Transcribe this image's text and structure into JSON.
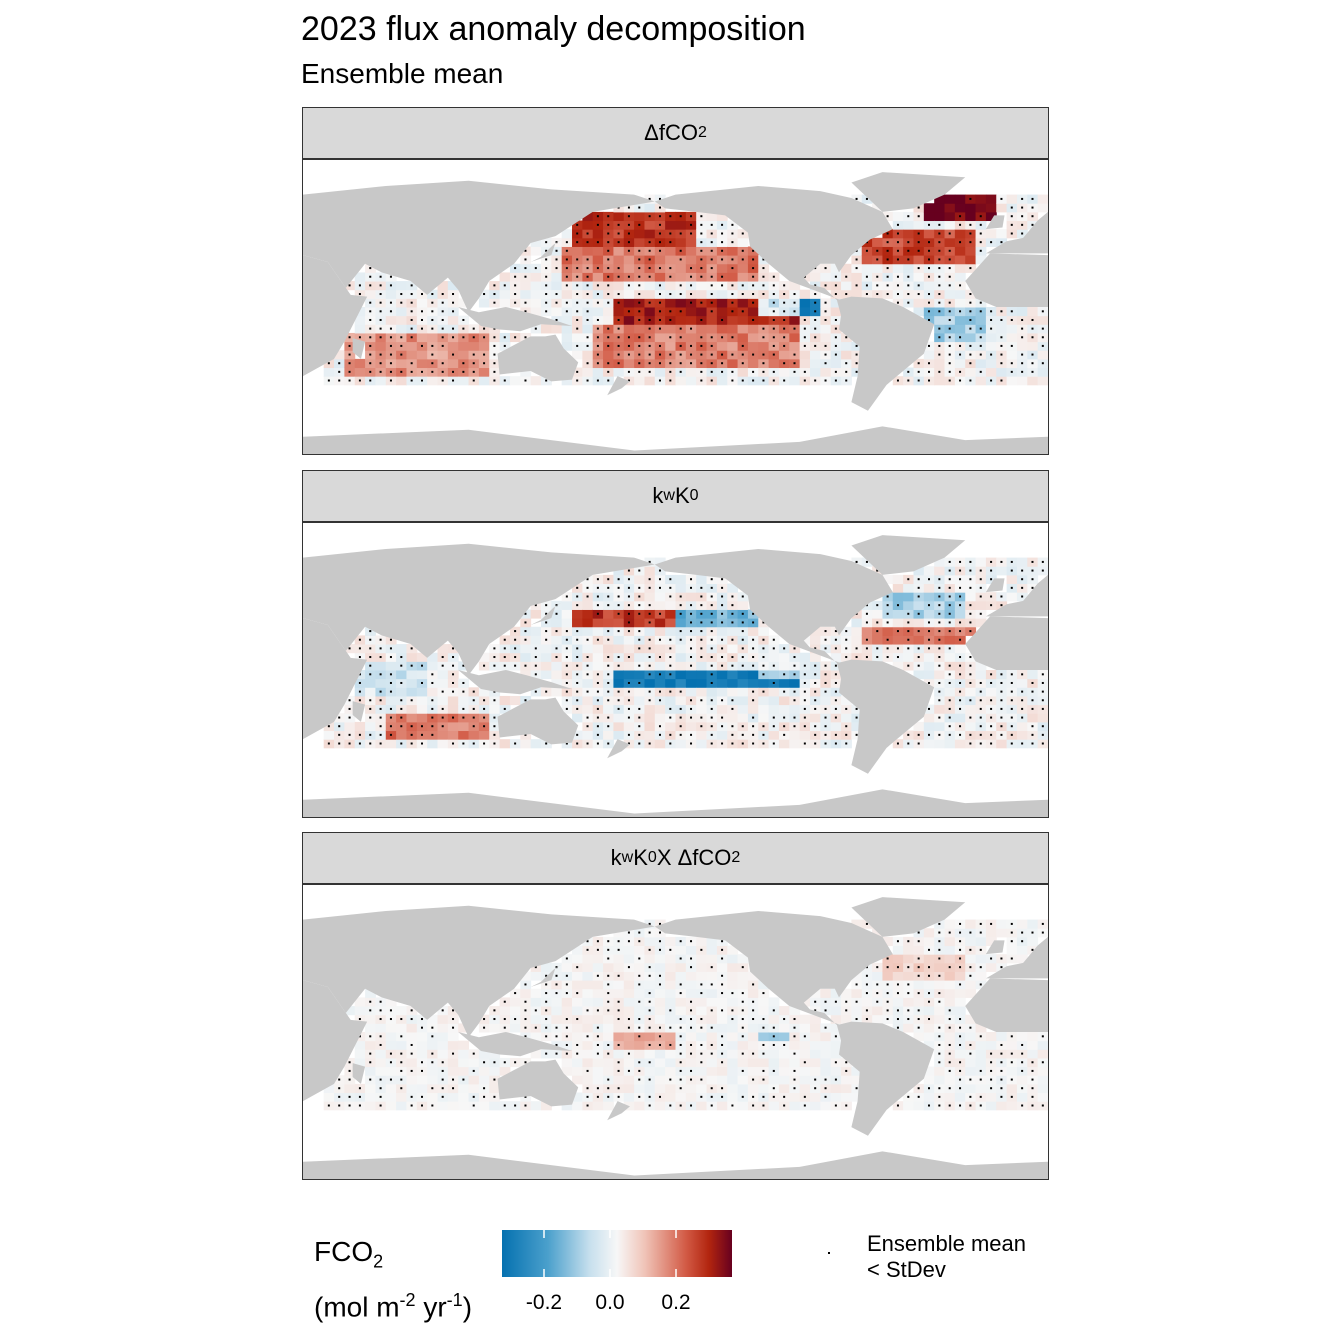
{
  "title": "2023 flux anomaly decomposition",
  "subtitle": "Ensemble mean",
  "panels": [
    {
      "label_main": "ΔfCO",
      "label_sub": "2",
      "label_rest": ""
    },
    {
      "label_main": "k",
      "label_sub": "w",
      "label_rest": " K",
      "label_sub2": "0"
    },
    {
      "label_main": "k",
      "label_sub": "w",
      "label_rest": " K",
      "label_sub2": "0",
      "label_tail": " X ΔfCO",
      "label_sub3": "2"
    }
  ],
  "legend": {
    "title_line1": "FCO",
    "title_line1_sub": "2",
    "title_line2_a": "(mol m",
    "title_line2_sup1": "-2",
    "title_line2_b": " yr",
    "title_line2_sup2": "-1",
    "title_line2_c": ")",
    "ticks": [
      "-0.2",
      "0.0",
      "0.2"
    ],
    "stipple_label_line1": "Ensemble mean",
    "stipple_label_line2": "< StDev"
  },
  "colors": {
    "land": "#c8c8c8",
    "strong_negative": "#0571b0",
    "neutral": "#f7f7f7",
    "strong_positive": "#67001f"
  },
  "chart_data": [
    {
      "type": "heatmap",
      "panel": "ΔfCO2",
      "color_scale": {
        "min": -0.3,
        "max": 0.3,
        "ticks": [
          -0.2,
          0.0,
          0.2
        ]
      },
      "anomaly_regions": [
        {
          "lon": [
            150,
            210
          ],
          "lat": [
            40,
            58
          ],
          "value": 0.22
        },
        {
          "lon": [
            145,
            240
          ],
          "lat": [
            20,
            40
          ],
          "value": 0.15
        },
        {
          "lon": [
            170,
            260
          ],
          "lat": [
            -5,
            10
          ],
          "value": 0.25
        },
        {
          "lon": [
            240,
            270
          ],
          "lat": [
            0,
            10
          ],
          "value": -0.3
        },
        {
          "lon": [
            160,
            260
          ],
          "lat": [
            -30,
            -5
          ],
          "value": 0.14
        },
        {
          "lon": [
            290,
            345
          ],
          "lat": [
            30,
            50
          ],
          "value": 0.2
        },
        {
          "lon": [
            320,
            355
          ],
          "lat": [
            55,
            70
          ],
          "value": 0.3
        },
        {
          "lon": [
            320,
            350
          ],
          "lat": [
            -15,
            5
          ],
          "value": -0.1
        },
        {
          "lon": [
            40,
            110
          ],
          "lat": [
            -35,
            -10
          ],
          "value": 0.12
        }
      ]
    },
    {
      "type": "heatmap",
      "panel": "kw K0",
      "color_scale": {
        "min": -0.3,
        "max": 0.3,
        "ticks": [
          -0.2,
          0.0,
          0.2
        ]
      },
      "anomaly_regions": [
        {
          "lon": [
            150,
            200
          ],
          "lat": [
            28,
            40
          ],
          "value": 0.22
        },
        {
          "lon": [
            200,
            240
          ],
          "lat": [
            30,
            42
          ],
          "value": -0.15
        },
        {
          "lon": [
            170,
            260
          ],
          "lat": [
            -5,
            5
          ],
          "value": -0.28
        },
        {
          "lon": [
            240,
            260
          ],
          "lat": [
            0,
            5
          ],
          "value": 0.2
        },
        {
          "lon": [
            300,
            340
          ],
          "lat": [
            35,
            50
          ],
          "value": -0.1
        },
        {
          "lon": [
            290,
            345
          ],
          "lat": [
            20,
            30
          ],
          "value": 0.15
        },
        {
          "lon": [
            60,
            110
          ],
          "lat": [
            -35,
            -20
          ],
          "value": 0.15
        },
        {
          "lon": [
            40,
            80
          ],
          "lat": [
            -10,
            10
          ],
          "value": -0.05
        }
      ]
    },
    {
      "type": "heatmap",
      "panel": "kw K0 X ΔfCO2",
      "color_scale": {
        "min": -0.3,
        "max": 0.3,
        "ticks": [
          -0.2,
          0.0,
          0.2
        ]
      },
      "anomaly_regions": [
        {
          "lon": [
            170,
            200
          ],
          "lat": [
            -5,
            5
          ],
          "value": 0.1
        },
        {
          "lon": [
            240,
            255
          ],
          "lat": [
            0,
            5
          ],
          "value": -0.12
        },
        {
          "lon": [
            300,
            340
          ],
          "lat": [
            35,
            50
          ],
          "value": 0.05
        }
      ]
    }
  ]
}
